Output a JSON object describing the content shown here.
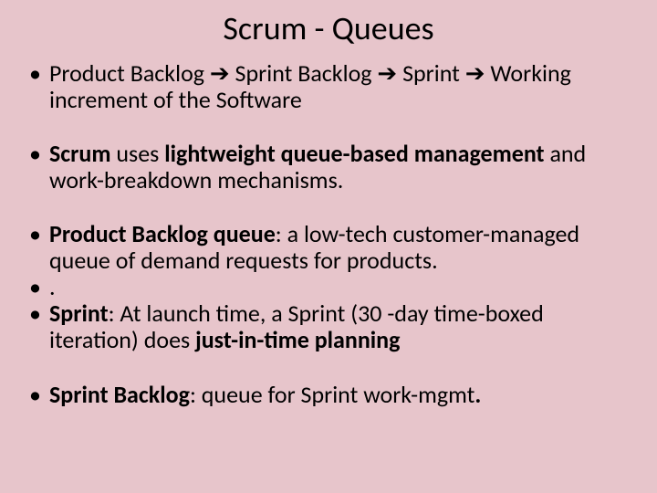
{
  "slide": {
    "background_color": "#e7c5cb",
    "text_color": "#000000",
    "title": {
      "text": "Scrum - Queues",
      "fontsize": 36,
      "weight": 400
    },
    "body_fontsize": 26,
    "bullets": [
      {
        "html": "Product Backlog ➔ Sprint Backlog ➔ Sprint ➔ Working increment of the Software",
        "spacer_after": true
      },
      {
        "html": "<b>Scrum</b> uses <b>lightweight queue-based management</b> and work-breakdown mechanisms.",
        "spacer_after": true
      },
      {
        "html": "<b>Product Backlog queue</b>:  a low-tech customer-managed queue of demand requests for products.",
        "spacer_after": false
      },
      {
        "html": ".",
        "spacer_after": false
      },
      {
        "html": "<b>Sprint</b>:  At launch time, a Sprint (30 -day time-boxed iteration) does <b>just-in-time planning</b>",
        "spacer_after": true
      },
      {
        "html": "<b>Sprint Backlog</b>: queue for Sprint work-mgmt<b>.</b>",
        "spacer_after": false
      }
    ]
  }
}
